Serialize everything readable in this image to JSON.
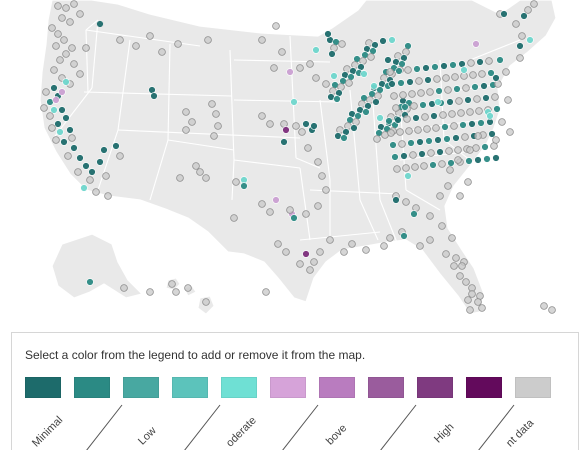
{
  "legend": {
    "instruction": "Select a color from the legend to add or remove it from the map.",
    "colors": [
      "#1d6b6b",
      "#2b8a84",
      "#48a8a1",
      "#5cc3bb",
      "#6fe0d4",
      "#d6a3d9",
      "#b97cbf",
      "#9a5c9d",
      "#7f3a80",
      "#630a5c",
      "#cccccc"
    ],
    "labels": [
      "Minimal",
      "Low",
      "Moderate",
      "Above Average",
      "High",
      "Insufficient data"
    ],
    "label_display": [
      "Minimal",
      "Low",
      "oderate",
      "bove",
      "High",
      "nt data"
    ]
  },
  "map": {
    "land_color": "#e9e9e9",
    "border_color": "#ffffff",
    "site_categories": [
      "teal-dark",
      "teal-mid",
      "teal-light",
      "purple-light",
      "purple-dark",
      "gray"
    ]
  }
}
